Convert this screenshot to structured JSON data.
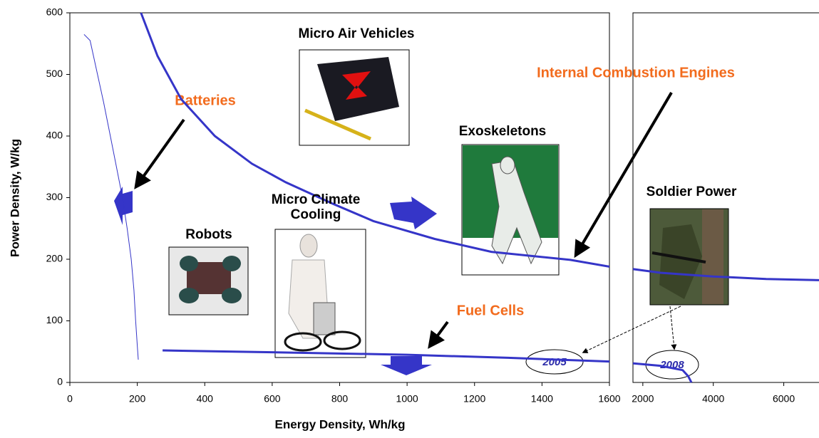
{
  "chart_data": [
    {
      "type": "line",
      "ylabel": "Power Density, W/kg",
      "xlabel": "Energy Density, Wh/kg",
      "xlim": [
        0,
        1600
      ],
      "xticks": [
        0,
        200,
        400,
        600,
        800,
        1000,
        1200,
        1400,
        1600
      ],
      "ylim": [
        0,
        600
      ],
      "yticks": [
        0,
        100,
        200,
        300,
        400,
        500,
        600
      ],
      "series": [
        {
          "name": "Batteries",
          "color": "#3535c8",
          "line_width": 1,
          "x": [
            42,
            60,
            82,
            100,
            120,
            140,
            156,
            170,
            182,
            190,
            195,
            200,
            203
          ],
          "values": [
            565,
            555,
            500,
            455,
            400,
            345,
            300,
            250,
            200,
            150,
            100,
            60,
            37
          ]
        },
        {
          "name": "Internal Combustion Engines",
          "color": "#3535c8",
          "line_width": 3,
          "x": [
            211,
            260,
            330,
            430,
            540,
            640,
            780,
            900,
            1082,
            1250,
            1484,
            1600
          ],
          "values": [
            600,
            530,
            460,
            400,
            355,
            325,
            290,
            262,
            233,
            212,
            199,
            188
          ]
        },
        {
          "name": "Fuel Cells",
          "color": "#3535c8",
          "line_width": 3,
          "x": [
            275,
            600,
            1000,
            1300,
            1600
          ],
          "values": [
            52,
            49,
            45,
            40,
            34
          ]
        }
      ]
    },
    {
      "type": "line",
      "xlim": [
        1720,
        7000
      ],
      "xticks": [
        2000,
        4000,
        6000
      ],
      "ylim": [
        0,
        600
      ],
      "series": [
        {
          "color": "#3535c8",
          "line_width": 3,
          "x": [
            1720,
            2500,
            4000,
            5500,
            7000
          ],
          "values": [
            184,
            178,
            172,
            168,
            166
          ]
        },
        {
          "color": "#3535c8",
          "line_width": 3,
          "x": [
            1720,
            2500,
            3130,
            3290,
            3379
          ],
          "values": [
            31,
            27,
            20,
            10,
            0
          ]
        }
      ]
    }
  ],
  "photos": [
    {
      "caption": [
        "Micro Air Vehicles"
      ]
    },
    {
      "caption": [
        "Exoskeletons"
      ]
    },
    {
      "caption": [
        "Micro Climate",
        "Cooling"
      ]
    },
    {
      "caption": [
        "Robots"
      ]
    },
    {
      "caption": [
        "Soldier Power"
      ]
    }
  ],
  "years": [
    "2005",
    "2008"
  ]
}
